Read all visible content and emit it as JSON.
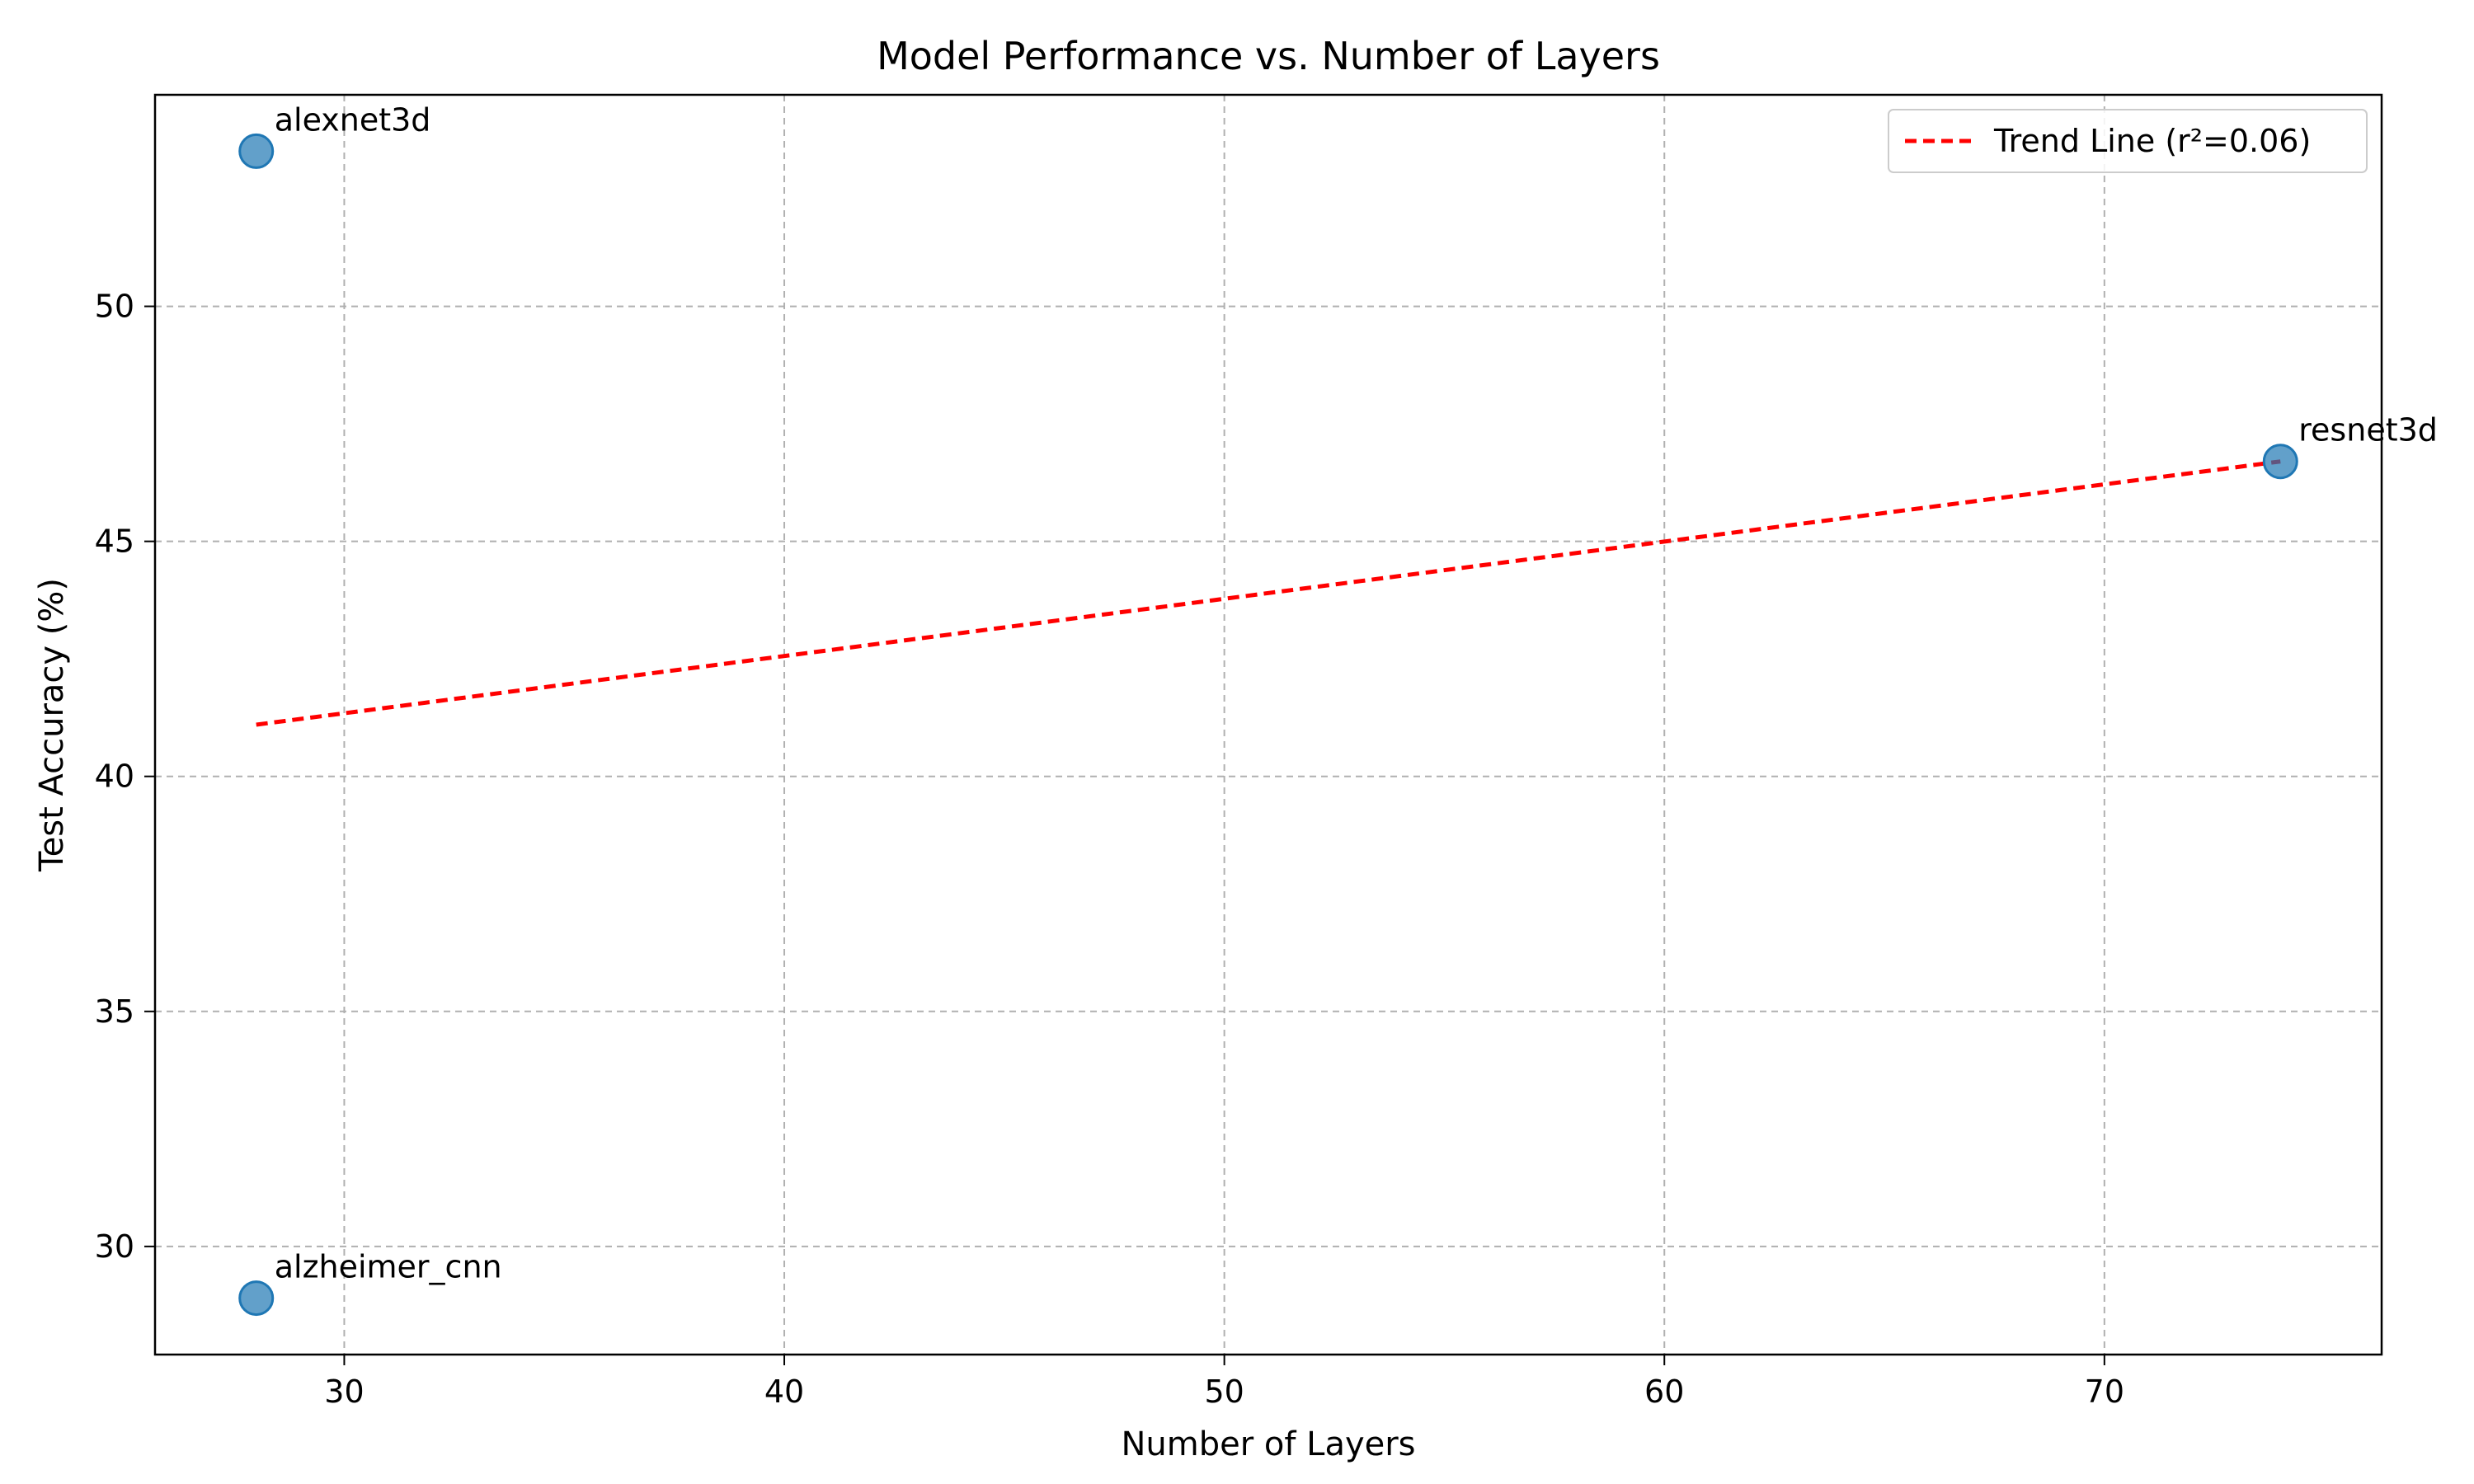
{
  "chart_data": {
    "type": "scatter",
    "title": "Model Performance vs. Number of Layers",
    "xlabel": "Number of Layers",
    "ylabel": "Test Accuracy (%)",
    "xlim": [
      25.7,
      76.3
    ],
    "ylim": [
      27.7,
      54.5
    ],
    "xticks": [
      30,
      40,
      50,
      60,
      70
    ],
    "yticks": [
      30,
      35,
      40,
      45,
      50
    ],
    "grid": true,
    "legend_position": "top-right",
    "point_color": "#1f77b4",
    "points": [
      {
        "label": "alexnet3d",
        "x": 28,
        "y": 53.3
      },
      {
        "label": "resnet3d",
        "x": 74,
        "y": 46.7
      },
      {
        "label": "alzheimer_cnn",
        "x": 28,
        "y": 28.9
      }
    ],
    "trend_line": {
      "name": "Trend Line (r²=0.06)",
      "color": "#ff0000",
      "style": "dashed",
      "x": [
        28,
        74
      ],
      "y": [
        41.1,
        46.7
      ]
    }
  }
}
